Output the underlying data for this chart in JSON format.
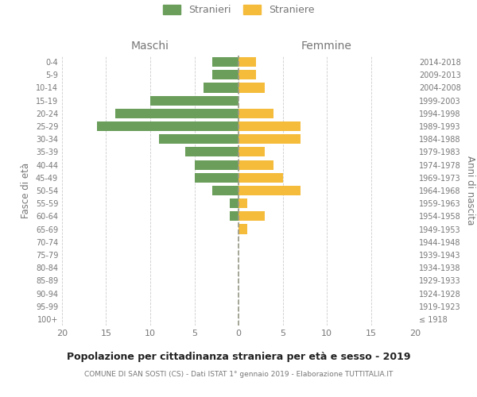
{
  "age_groups": [
    "100+",
    "95-99",
    "90-94",
    "85-89",
    "80-84",
    "75-79",
    "70-74",
    "65-69",
    "60-64",
    "55-59",
    "50-54",
    "45-49",
    "40-44",
    "35-39",
    "30-34",
    "25-29",
    "20-24",
    "15-19",
    "10-14",
    "5-9",
    "0-4"
  ],
  "birth_years": [
    "≤ 1918",
    "1919-1923",
    "1924-1928",
    "1929-1933",
    "1934-1938",
    "1939-1943",
    "1944-1948",
    "1949-1953",
    "1954-1958",
    "1959-1963",
    "1964-1968",
    "1969-1973",
    "1974-1978",
    "1979-1983",
    "1984-1988",
    "1989-1993",
    "1994-1998",
    "1999-2003",
    "2004-2008",
    "2009-2013",
    "2014-2018"
  ],
  "males": [
    0,
    0,
    0,
    0,
    0,
    0,
    0,
    0,
    1,
    1,
    3,
    5,
    5,
    6,
    9,
    16,
    14,
    10,
    4,
    3,
    3
  ],
  "females": [
    0,
    0,
    0,
    0,
    0,
    0,
    0,
    1,
    3,
    1,
    7,
    5,
    4,
    3,
    7,
    7,
    4,
    0,
    3,
    2,
    2
  ],
  "male_color": "#6a9e5a",
  "female_color": "#f5bb3a",
  "bar_height": 0.75,
  "xlim": 20,
  "title_main": "Popolazione per cittadinanza straniera per età e sesso - 2019",
  "title_sub": "COMUNE DI SAN SOSTI (CS) - Dati ISTAT 1° gennaio 2019 - Elaborazione TUTTITALIA.IT",
  "legend_male": "Stranieri",
  "legend_female": "Straniere",
  "xlabel_left": "Maschi",
  "xlabel_right": "Femmine",
  "ylabel_left": "Fasce di età",
  "ylabel_right": "Anni di nascita",
  "bg_color": "#ffffff",
  "grid_color": "#cccccc",
  "label_color": "#777777",
  "center_line_color": "#999988"
}
